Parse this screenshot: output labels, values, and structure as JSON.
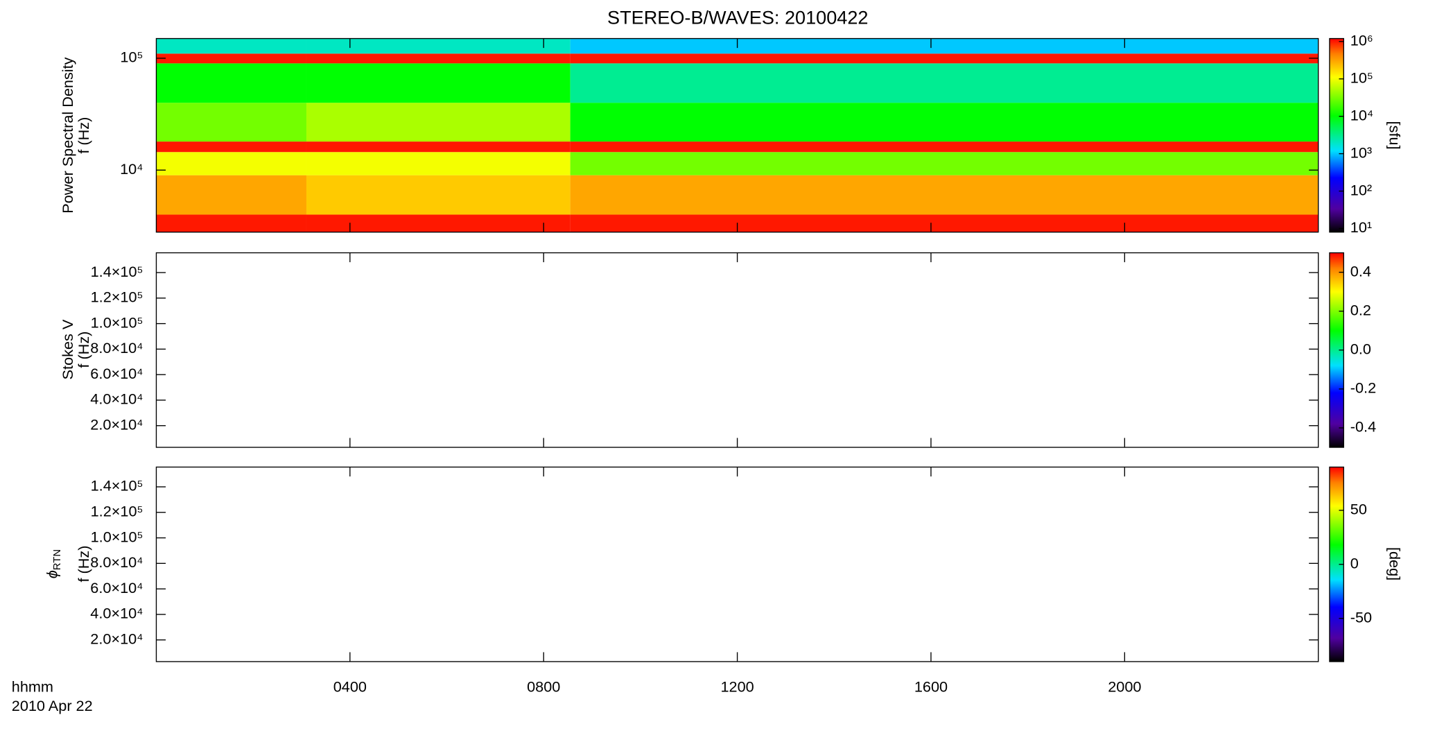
{
  "chart_data": [
    {
      "type": "heatmap",
      "title": "STEREO-B/WAVES: 20100422",
      "ylabel": [
        "Power Spectral Density",
        "f (Hz)"
      ],
      "xlim": [
        0,
        24
      ],
      "xticks": [
        4,
        8,
        12,
        16,
        20
      ],
      "ylim": [
        2790,
        150000
      ],
      "ylog": true,
      "yticks": [
        {
          "value": 10000,
          "label": "10⁴"
        },
        {
          "value": 100000,
          "label": "10⁵"
        }
      ],
      "x_bins": [
        0,
        3.1,
        8.55,
        24
      ],
      "y_bins": [
        2790,
        4000,
        9000,
        14500,
        18000,
        40000,
        90000,
        110000,
        150000
      ],
      "z": [
        [
          1000000,
          1000000,
          1000000
        ],
        [
          300000,
          200000,
          300000
        ],
        [
          100000,
          100000,
          30000
        ],
        [
          1000000,
          1000000,
          1000000
        ],
        [
          30000,
          50000,
          10000
        ],
        [
          10000,
          10000,
          3000
        ],
        [
          1000000,
          1000000,
          1000000
        ],
        [
          2000,
          2000,
          1000
        ]
      ],
      "zlim": [
        8,
        1200000
      ],
      "zlog": true,
      "zticks": [
        {
          "value": 10,
          "label": "10¹"
        },
        {
          "value": 100,
          "label": "10²"
        },
        {
          "value": 1000,
          "label": "10³"
        },
        {
          "value": 10000,
          "label": "10⁴"
        },
        {
          "value": 100000,
          "label": "10⁵"
        },
        {
          "value": 1000000,
          "label": "10⁶"
        }
      ],
      "zlabel": "[sfu]"
    },
    {
      "type": "heatmap",
      "ylabel": [
        "Stokes V",
        "f (Hz)"
      ],
      "xlim": [
        0,
        24
      ],
      "xticks": [
        4,
        8,
        12,
        16,
        20
      ],
      "ylim": [
        3000,
        155500
      ],
      "yticks": [
        {
          "value": 20000,
          "label": "2.0×10⁴"
        },
        {
          "value": 40000,
          "label": "4.0×10⁴"
        },
        {
          "value": 60000,
          "label": "6.0×10⁴"
        },
        {
          "value": 80000,
          "label": "8.0×10⁴"
        },
        {
          "value": 100000,
          "label": "1.0×10⁵"
        },
        {
          "value": 120000,
          "label": "1.2×10⁵"
        },
        {
          "value": 140000,
          "label": "1.4×10⁵"
        }
      ],
      "zlim": [
        -0.5,
        0.5
      ],
      "zticks": [
        -0.4,
        -0.2,
        {
          "value": 0,
          "label": "0.0"
        },
        0.2,
        0.4
      ]
    },
    {
      "type": "heatmap",
      "ylabel_symbol": "ϕ",
      "ylabel_subscript": "RTN",
      "ylabel": [
        "f (Hz)"
      ],
      "xlim": [
        0,
        24
      ],
      "xticks": [
        {
          "value": 4,
          "label": "0400"
        },
        {
          "value": 8,
          "label": "0800"
        },
        {
          "value": 12,
          "label": "1200"
        },
        {
          "value": 16,
          "label": "1600"
        },
        {
          "value": 20,
          "label": "2000"
        }
      ],
      "xlabel": [
        "hhmm",
        "2010 Apr 22"
      ],
      "ylim": [
        3000,
        155500
      ],
      "yticks": [
        {
          "value": 20000,
          "label": "2.0×10⁴"
        },
        {
          "value": 40000,
          "label": "4.0×10⁴"
        },
        {
          "value": 60000,
          "label": "6.0×10⁴"
        },
        {
          "value": 80000,
          "label": "8.0×10⁴"
        },
        {
          "value": 100000,
          "label": "1.0×10⁵"
        },
        {
          "value": 120000,
          "label": "1.2×10⁵"
        },
        {
          "value": 140000,
          "label": "1.4×10⁵"
        }
      ],
      "zlim": [
        -90,
        90
      ],
      "zticks": [
        -50,
        0,
        50
      ],
      "zlabel": "[deg]"
    }
  ]
}
